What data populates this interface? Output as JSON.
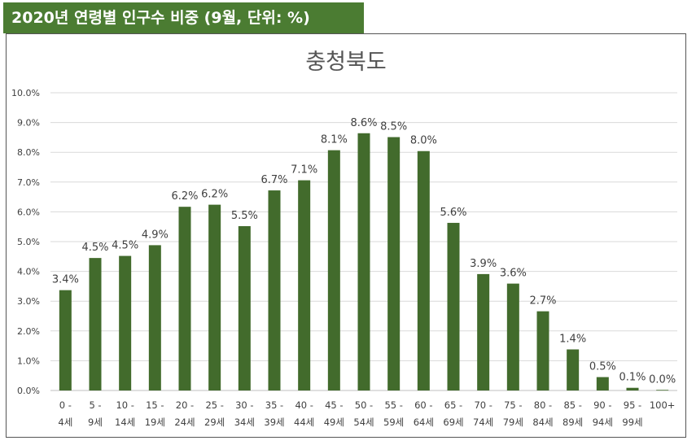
{
  "banner": {
    "text": "2020년 연령별 인구수 비중 (9월, 단위: %)"
  },
  "colors": {
    "bar": "#426b2c",
    "banner": "#4b7c32",
    "grid": "#d9d9d9"
  },
  "chart_data": {
    "type": "bar",
    "title": "충청북도",
    "xlabel": "",
    "ylabel": "",
    "ylim": [
      0,
      10
    ],
    "grid": true,
    "y_ticks": [
      "0.0%",
      "1.0%",
      "2.0%",
      "3.0%",
      "4.0%",
      "5.0%",
      "6.0%",
      "7.0%",
      "8.0%",
      "9.0%",
      "10.0%"
    ],
    "categories": [
      [
        "0 -",
        "4세"
      ],
      [
        "5 -",
        "9세"
      ],
      [
        "10 -",
        "14세"
      ],
      [
        "15 -",
        "19세"
      ],
      [
        "20 -",
        "24세"
      ],
      [
        "25 -",
        "29세"
      ],
      [
        "30 -",
        "34세"
      ],
      [
        "35 -",
        "39세"
      ],
      [
        "40 -",
        "44세"
      ],
      [
        "45 -",
        "49세"
      ],
      [
        "50 -",
        "54세"
      ],
      [
        "55 -",
        "59세"
      ],
      [
        "60 -",
        "64세"
      ],
      [
        "65 -",
        "69세"
      ],
      [
        "70 -",
        "74세"
      ],
      [
        "75 -",
        "79세"
      ],
      [
        "80 -",
        "84세"
      ],
      [
        "85 -",
        "89세"
      ],
      [
        "90 -",
        "94세"
      ],
      [
        "95 -",
        "99세"
      ],
      [
        "100+",
        ""
      ]
    ],
    "values": [
      3.37,
      4.45,
      4.52,
      4.88,
      6.17,
      6.24,
      5.52,
      6.72,
      7.06,
      8.07,
      8.64,
      8.51,
      8.04,
      5.63,
      3.91,
      3.59,
      2.66,
      1.38,
      0.45,
      0.09,
      0.02
    ],
    "data_labels": [
      "3.4%",
      "4.5%",
      "4.5%",
      "4.9%",
      "6.2%",
      "6.2%",
      "5.5%",
      "6.7%",
      "7.1%",
      "8.1%",
      "8.6%",
      "8.5%",
      "8.0%",
      "5.6%",
      "3.9%",
      "3.6%",
      "2.7%",
      "1.4%",
      "0.5%",
      "0.1%",
      "0.0%"
    ]
  }
}
